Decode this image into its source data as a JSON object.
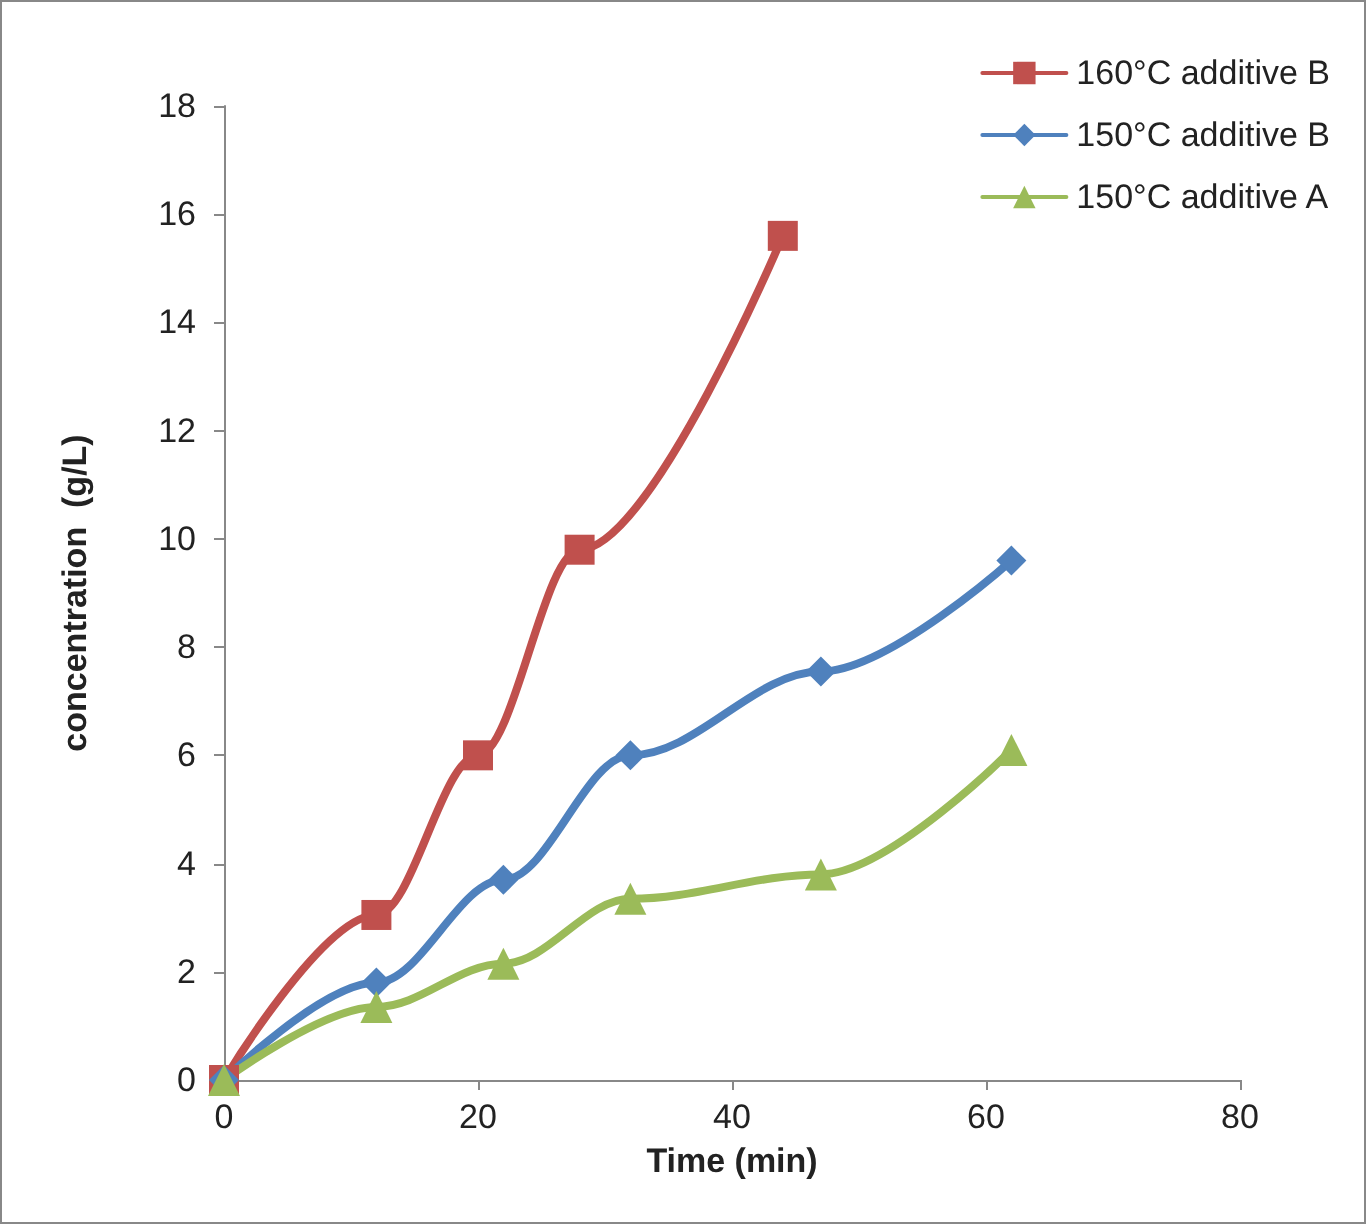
{
  "chart_data": {
    "type": "line",
    "xlabel": "Time (min)",
    "ylabel": "concentration  (g/L)",
    "xlim": [
      0,
      80
    ],
    "xticks": [
      0,
      20,
      40,
      60,
      80
    ],
    "ylim": [
      0,
      18
    ],
    "yticks": [
      0,
      2,
      4,
      6,
      8,
      10,
      12,
      14,
      16,
      18
    ],
    "grid": false,
    "legend": "top right",
    "line_style": "solid",
    "series": [
      {
        "name": "160°C additive B",
        "color": "#c0504d",
        "marker": "square",
        "x": [
          0,
          12,
          20,
          28,
          44
        ],
        "values": [
          0,
          3.05,
          6.0,
          9.8,
          15.6
        ]
      },
      {
        "name": "150°C additive B",
        "color": "#4f81bd",
        "marker": "diamond",
        "x": [
          0,
          12,
          22,
          32,
          47,
          62
        ],
        "values": [
          0,
          1.8,
          3.7,
          6.0,
          7.55,
          9.6
        ]
      },
      {
        "name": "150°C additive A",
        "color": "#9bbb59",
        "marker": "triangle",
        "x": [
          0,
          12,
          22,
          32,
          47,
          62
        ],
        "values": [
          0,
          1.35,
          2.15,
          3.35,
          3.8,
          6.1
        ]
      }
    ]
  }
}
